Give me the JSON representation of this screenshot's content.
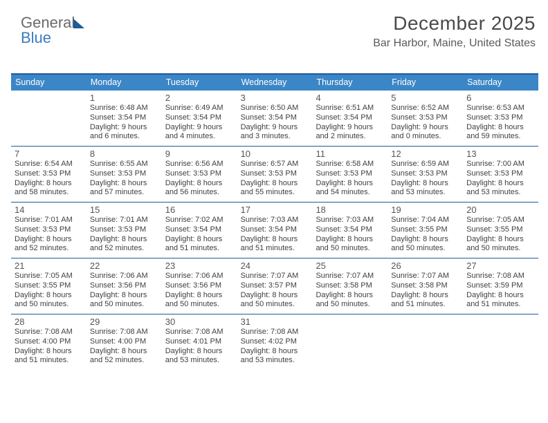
{
  "logo": {
    "word1": "General",
    "word2": "Blue"
  },
  "header": {
    "title": "December 2025",
    "subtitle": "Bar Harbor, Maine, United States"
  },
  "colors": {
    "header_bar": "#3b86c7",
    "rule": "#1f5a99",
    "text": "#3a3a3a",
    "logo_grey": "#6a6a6a",
    "logo_blue": "#3b7bbf"
  },
  "weekdays": [
    "Sunday",
    "Monday",
    "Tuesday",
    "Wednesday",
    "Thursday",
    "Friday",
    "Saturday"
  ],
  "start_weekday_index": 1,
  "days": [
    {
      "n": 1,
      "sunrise": "6:48 AM",
      "sunset": "3:54 PM",
      "daylight": "9 hours and 6 minutes."
    },
    {
      "n": 2,
      "sunrise": "6:49 AM",
      "sunset": "3:54 PM",
      "daylight": "9 hours and 4 minutes."
    },
    {
      "n": 3,
      "sunrise": "6:50 AM",
      "sunset": "3:54 PM",
      "daylight": "9 hours and 3 minutes."
    },
    {
      "n": 4,
      "sunrise": "6:51 AM",
      "sunset": "3:54 PM",
      "daylight": "9 hours and 2 minutes."
    },
    {
      "n": 5,
      "sunrise": "6:52 AM",
      "sunset": "3:53 PM",
      "daylight": "9 hours and 0 minutes."
    },
    {
      "n": 6,
      "sunrise": "6:53 AM",
      "sunset": "3:53 PM",
      "daylight": "8 hours and 59 minutes."
    },
    {
      "n": 7,
      "sunrise": "6:54 AM",
      "sunset": "3:53 PM",
      "daylight": "8 hours and 58 minutes."
    },
    {
      "n": 8,
      "sunrise": "6:55 AM",
      "sunset": "3:53 PM",
      "daylight": "8 hours and 57 minutes."
    },
    {
      "n": 9,
      "sunrise": "6:56 AM",
      "sunset": "3:53 PM",
      "daylight": "8 hours and 56 minutes."
    },
    {
      "n": 10,
      "sunrise": "6:57 AM",
      "sunset": "3:53 PM",
      "daylight": "8 hours and 55 minutes."
    },
    {
      "n": 11,
      "sunrise": "6:58 AM",
      "sunset": "3:53 PM",
      "daylight": "8 hours and 54 minutes."
    },
    {
      "n": 12,
      "sunrise": "6:59 AM",
      "sunset": "3:53 PM",
      "daylight": "8 hours and 53 minutes."
    },
    {
      "n": 13,
      "sunrise": "7:00 AM",
      "sunset": "3:53 PM",
      "daylight": "8 hours and 53 minutes."
    },
    {
      "n": 14,
      "sunrise": "7:01 AM",
      "sunset": "3:53 PM",
      "daylight": "8 hours and 52 minutes."
    },
    {
      "n": 15,
      "sunrise": "7:01 AM",
      "sunset": "3:53 PM",
      "daylight": "8 hours and 52 minutes."
    },
    {
      "n": 16,
      "sunrise": "7:02 AM",
      "sunset": "3:54 PM",
      "daylight": "8 hours and 51 minutes."
    },
    {
      "n": 17,
      "sunrise": "7:03 AM",
      "sunset": "3:54 PM",
      "daylight": "8 hours and 51 minutes."
    },
    {
      "n": 18,
      "sunrise": "7:03 AM",
      "sunset": "3:54 PM",
      "daylight": "8 hours and 50 minutes."
    },
    {
      "n": 19,
      "sunrise": "7:04 AM",
      "sunset": "3:55 PM",
      "daylight": "8 hours and 50 minutes."
    },
    {
      "n": 20,
      "sunrise": "7:05 AM",
      "sunset": "3:55 PM",
      "daylight": "8 hours and 50 minutes."
    },
    {
      "n": 21,
      "sunrise": "7:05 AM",
      "sunset": "3:55 PM",
      "daylight": "8 hours and 50 minutes."
    },
    {
      "n": 22,
      "sunrise": "7:06 AM",
      "sunset": "3:56 PM",
      "daylight": "8 hours and 50 minutes."
    },
    {
      "n": 23,
      "sunrise": "7:06 AM",
      "sunset": "3:56 PM",
      "daylight": "8 hours and 50 minutes."
    },
    {
      "n": 24,
      "sunrise": "7:07 AM",
      "sunset": "3:57 PM",
      "daylight": "8 hours and 50 minutes."
    },
    {
      "n": 25,
      "sunrise": "7:07 AM",
      "sunset": "3:58 PM",
      "daylight": "8 hours and 50 minutes."
    },
    {
      "n": 26,
      "sunrise": "7:07 AM",
      "sunset": "3:58 PM",
      "daylight": "8 hours and 51 minutes."
    },
    {
      "n": 27,
      "sunrise": "7:08 AM",
      "sunset": "3:59 PM",
      "daylight": "8 hours and 51 minutes."
    },
    {
      "n": 28,
      "sunrise": "7:08 AM",
      "sunset": "4:00 PM",
      "daylight": "8 hours and 51 minutes."
    },
    {
      "n": 29,
      "sunrise": "7:08 AM",
      "sunset": "4:00 PM",
      "daylight": "8 hours and 52 minutes."
    },
    {
      "n": 30,
      "sunrise": "7:08 AM",
      "sunset": "4:01 PM",
      "daylight": "8 hours and 53 minutes."
    },
    {
      "n": 31,
      "sunrise": "7:08 AM",
      "sunset": "4:02 PM",
      "daylight": "8 hours and 53 minutes."
    }
  ],
  "labels": {
    "sunrise_prefix": "Sunrise: ",
    "sunset_prefix": "Sunset: ",
    "daylight_prefix": "Daylight: "
  }
}
